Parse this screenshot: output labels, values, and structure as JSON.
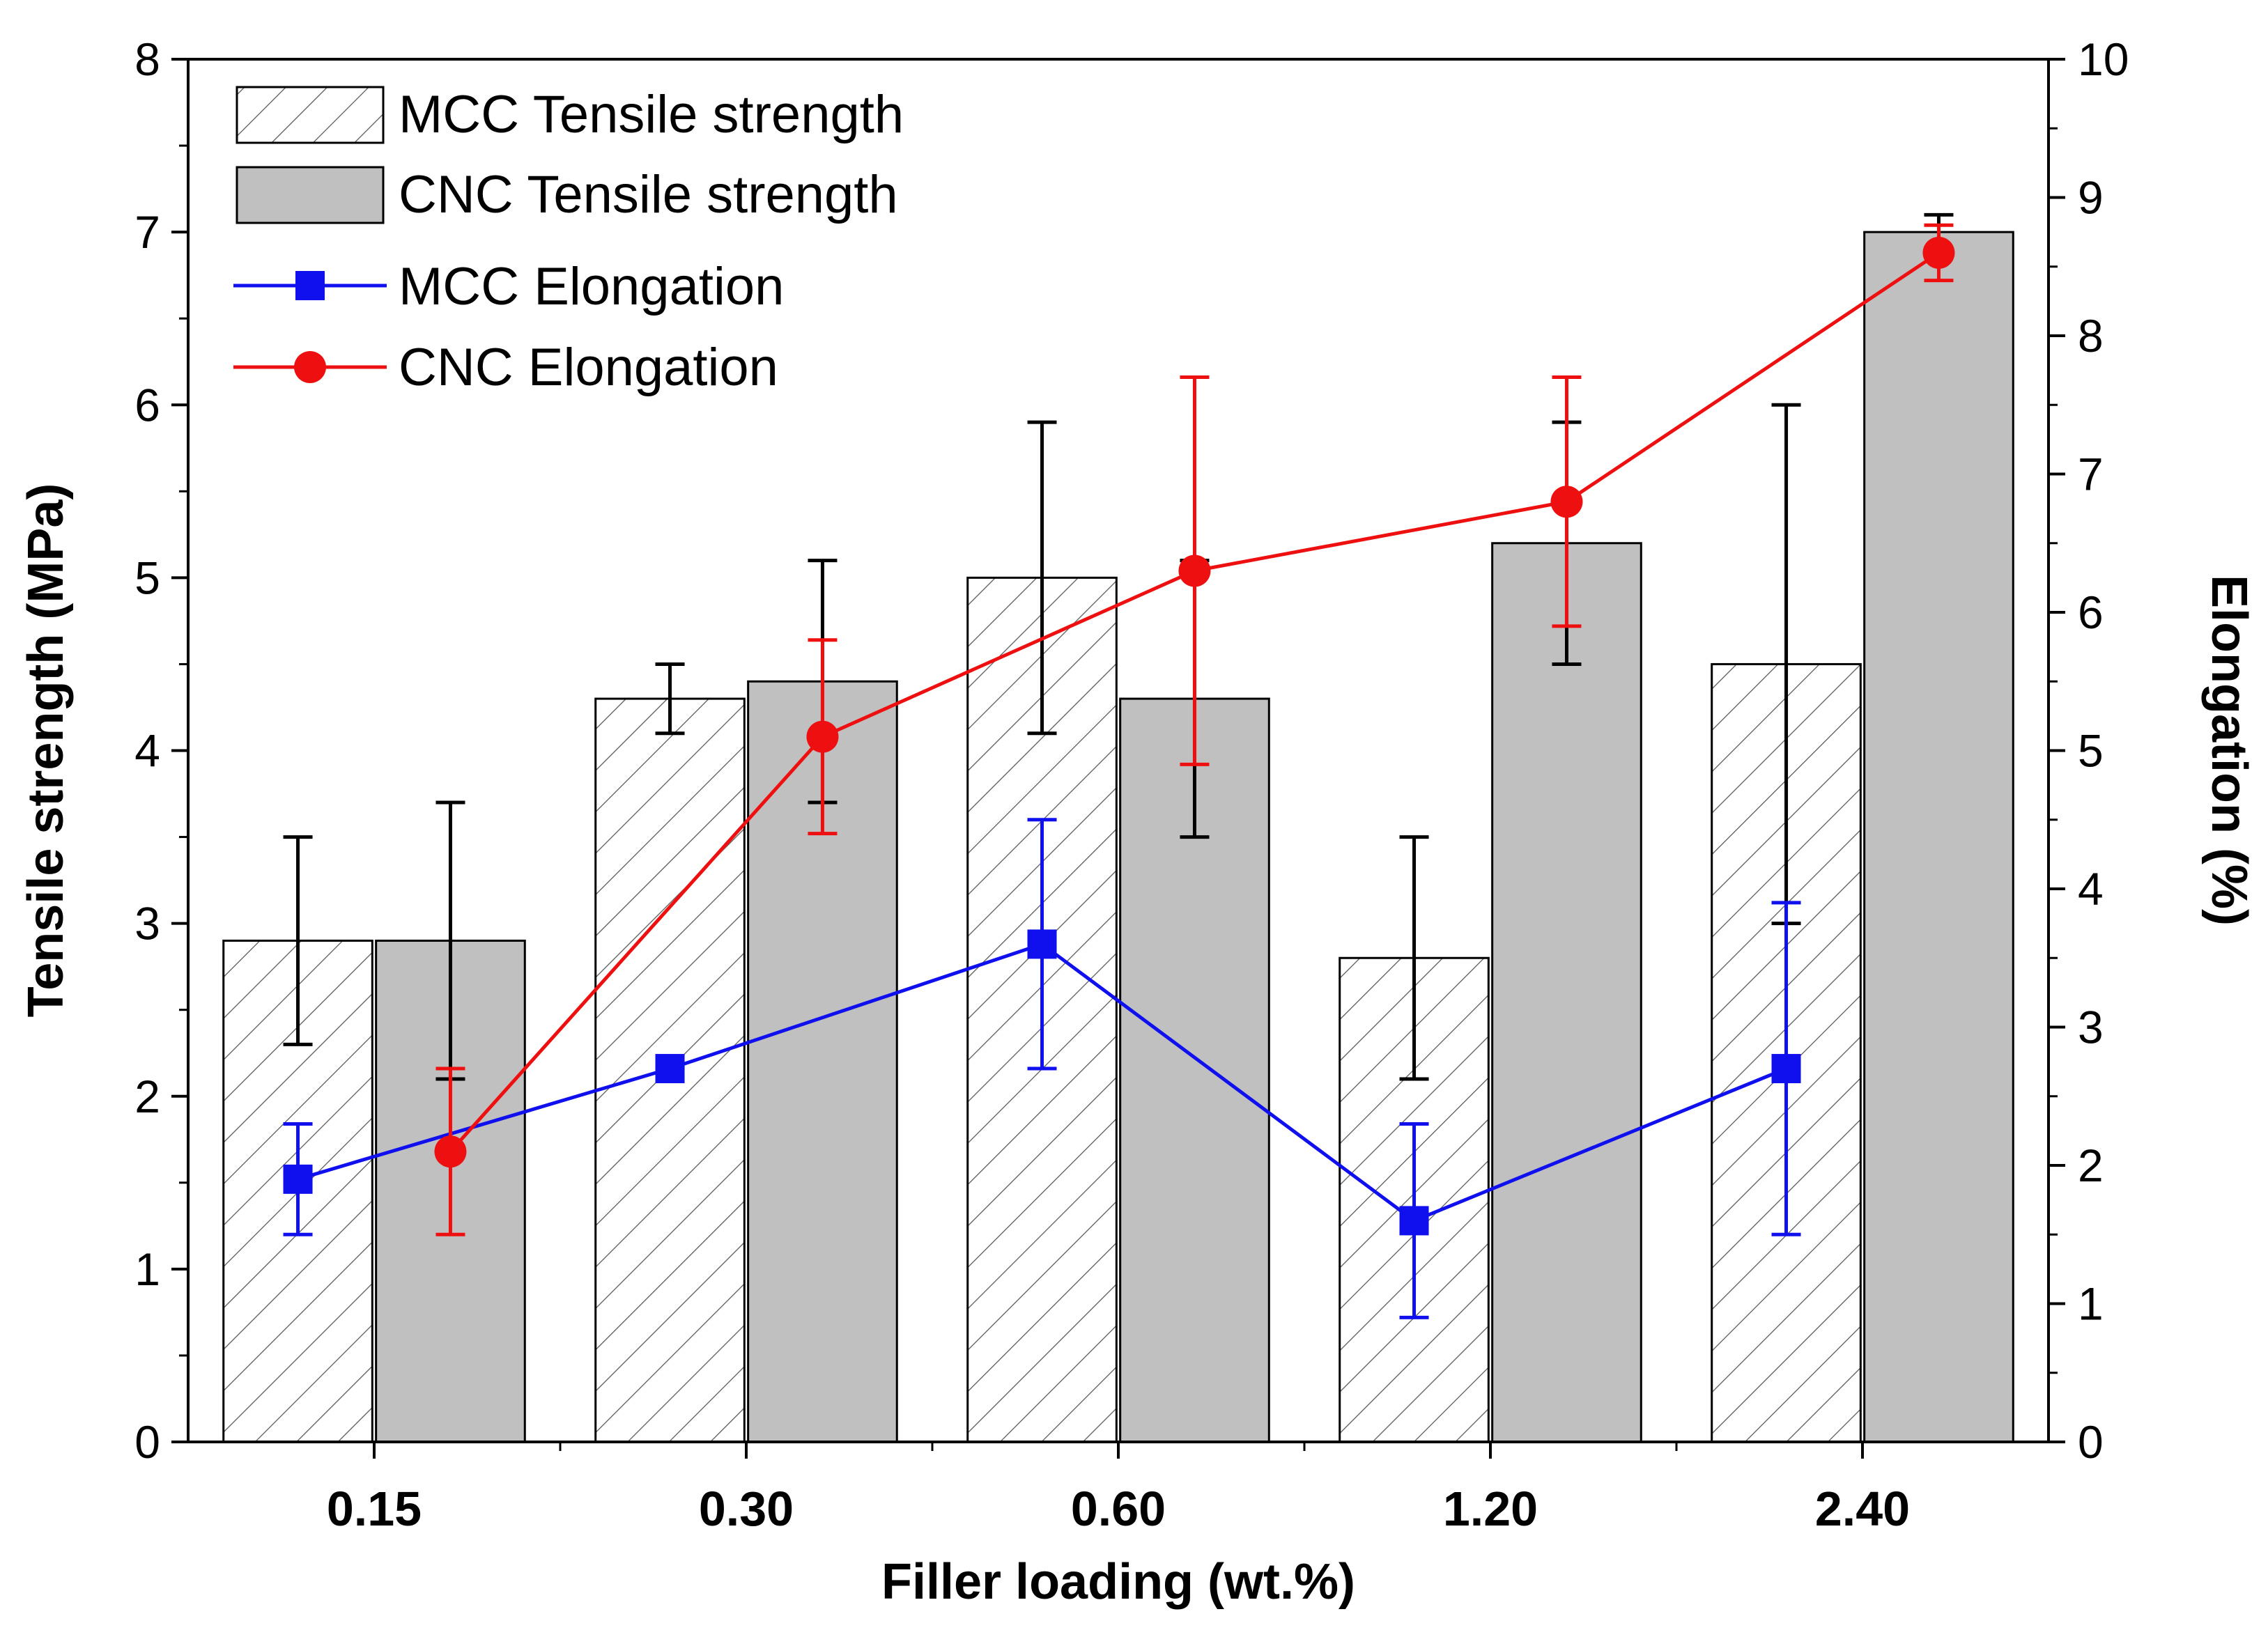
{
  "chart_data": {
    "type": "bar",
    "xlabel": "Filler loading (wt.%)",
    "ylabel": "Tensile strength (MPa)",
    "y2label": "Elongation (%)",
    "ylim": [
      0,
      8
    ],
    "y2lim": [
      0,
      10
    ],
    "yticks": [
      "0",
      "1",
      "2",
      "3",
      "4",
      "5",
      "6",
      "7",
      "8"
    ],
    "y2ticks": [
      "0",
      "1",
      "2",
      "3",
      "4",
      "5",
      "6",
      "7",
      "8",
      "9",
      "10"
    ],
    "categories": [
      "0.15",
      "0.30",
      "0.60",
      "1.20",
      "2.40"
    ],
    "legend_position": "top-left",
    "bar_series": [
      {
        "name": "MCC Tensile strength",
        "style": "hatched",
        "values": [
          2.9,
          4.3,
          5.0,
          2.8,
          4.5
        ],
        "err_low": [
          2.3,
          4.1,
          4.1,
          2.1,
          3.0
        ],
        "err_high": [
          3.5,
          4.5,
          5.9,
          3.5,
          6.0
        ]
      },
      {
        "name": "CNC Tensile strength",
        "style": "gray",
        "color": "#c0c0c0",
        "values": [
          2.9,
          4.4,
          4.3,
          5.2,
          7.0
        ],
        "err_low": [
          2.1,
          3.7,
          3.5,
          4.5,
          6.9
        ],
        "err_high": [
          3.7,
          5.1,
          5.1,
          5.9,
          7.1
        ]
      }
    ],
    "line_series": [
      {
        "name": "MCC Elongation",
        "axis": "right",
        "color": "#1010ee",
        "marker": "square",
        "values": [
          1.9,
          2.7,
          3.6,
          1.6,
          2.7
        ],
        "err_low": [
          1.5,
          2.7,
          2.7,
          0.9,
          1.5
        ],
        "err_high": [
          2.3,
          2.7,
          4.5,
          2.3,
          3.9
        ]
      },
      {
        "name": "CNC Elongation",
        "axis": "right",
        "color": "#ee1010",
        "marker": "circle",
        "values": [
          2.1,
          5.1,
          6.3,
          6.8,
          8.6
        ],
        "err_low": [
          1.5,
          4.4,
          4.9,
          5.9,
          8.4
        ],
        "err_high": [
          2.7,
          5.8,
          7.7,
          7.7,
          8.8
        ]
      }
    ]
  }
}
